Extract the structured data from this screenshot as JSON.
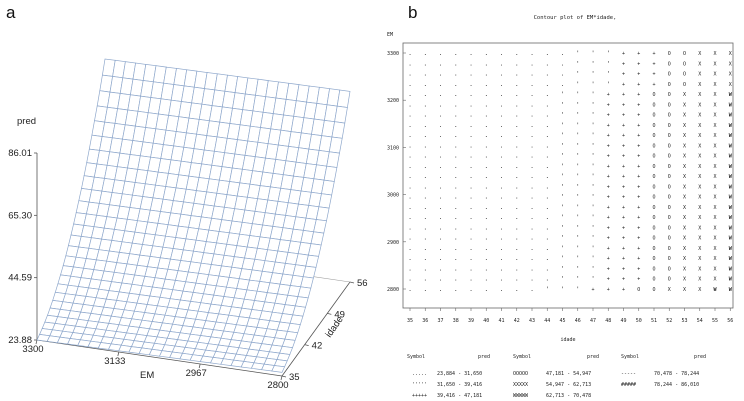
{
  "chart_data": [
    {
      "panel": "a",
      "type": "surface",
      "zlabel": "pred",
      "xlabel": "EM",
      "ylabel": "idade",
      "z_ticks": [
        "23.88",
        "44.59",
        "65.30",
        "86.01"
      ],
      "x_ticks": [
        "3300",
        "3133",
        "2967",
        "2800"
      ],
      "y_ticks": [
        "35",
        "42",
        "49",
        "56"
      ],
      "zlim": [
        23.88,
        86.01
      ],
      "xlim": [
        2800,
        3300
      ],
      "ylim": [
        35,
        56
      ],
      "surface_color": "#8fa8cc",
      "grid_resolution": [
        24,
        26
      ]
    },
    {
      "panel": "b",
      "type": "heatmap",
      "title": "Contour plot of EM*idade,",
      "ylabel": "EM",
      "xlabel": "idade",
      "y_ticks": [
        "3300",
        "3200",
        "3100",
        "3000",
        "2900",
        "2800"
      ],
      "x_ticks": [
        "35",
        "36",
        "37",
        "38",
        "39",
        "40",
        "41",
        "42",
        "43",
        "44",
        "45",
        "46",
        "47",
        "48",
        "49",
        "50",
        "51",
        "52",
        "53",
        "54",
        "55",
        "56"
      ],
      "levels": [
        {
          "symbol": ".....",
          "range": "23,884 - 31,650",
          "glyph": "."
        },
        {
          "symbol": "'''''",
          "range": "31,650 - 39,416",
          "glyph": "'"
        },
        {
          "symbol": "+++++",
          "range": "39,416 - 47,181",
          "glyph": "+"
        },
        {
          "symbol": "OOOOO",
          "range": "47,181 - 54,947",
          "glyph": "O"
        },
        {
          "symbol": "XXXXX",
          "range": "54,947 - 62,713",
          "glyph": "X"
        },
        {
          "symbol": "WWWWW",
          "range": "62,713 - 70,478",
          "glyph": "W"
        },
        {
          "symbol": "-----",
          "range": "70,478 - 78,244",
          "glyph": "-"
        },
        {
          "symbol": "#####",
          "range": "78,244 - 86,010",
          "glyph": "#"
        }
      ],
      "legend_headers": [
        "Symbol",
        "pred"
      ],
      "level_boundaries": [
        44,
        47,
        50,
        52,
        55,
        58,
        61
      ],
      "row_count": 24
    }
  ],
  "panel_labels": [
    "a",
    "b"
  ]
}
